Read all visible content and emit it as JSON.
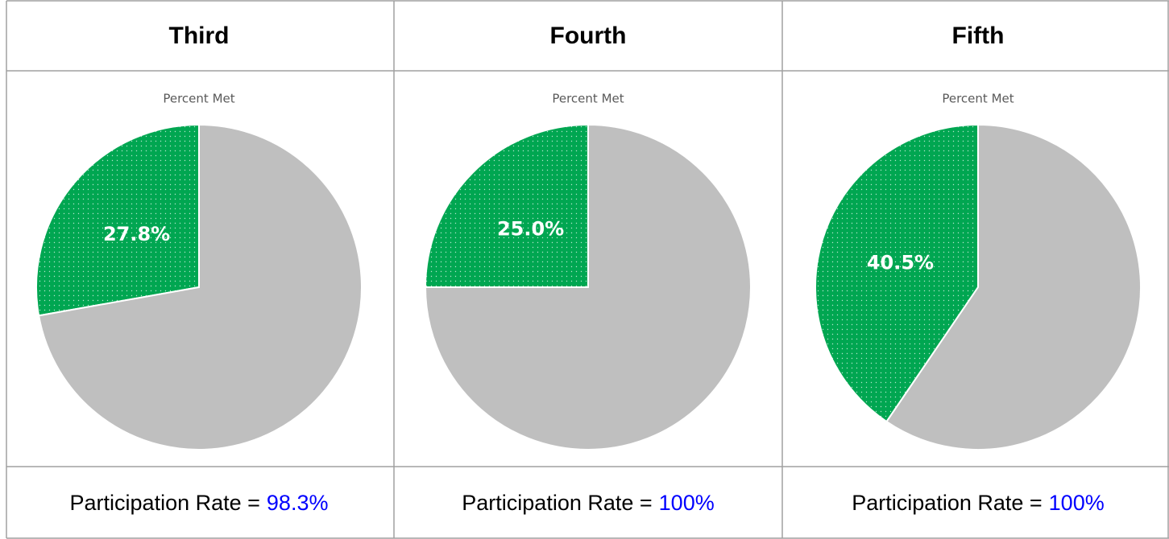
{
  "table": {
    "headers": [
      "Third",
      "Fourth",
      "Fifth"
    ],
    "footer": [
      {
        "label": "Participation Rate =",
        "value": "98.3%"
      },
      {
        "label": "Participation Rate =",
        "value": "100%"
      },
      {
        "label": "Participation Rate =",
        "value": "100%"
      }
    ]
  },
  "chart_data": [
    {
      "type": "pie",
      "title": "Percent Met",
      "values": [
        27.8,
        72.2
      ],
      "value_labels": [
        "27.8%",
        null
      ],
      "colors": [
        "#00a651",
        "#bfbfbf"
      ]
    },
    {
      "type": "pie",
      "title": "Percent Met",
      "values": [
        25.0,
        75.0
      ],
      "value_labels": [
        "25.0%",
        null
      ],
      "colors": [
        "#00a651",
        "#bfbfbf"
      ]
    },
    {
      "type": "pie",
      "title": "Percent Met",
      "values": [
        40.5,
        59.5
      ],
      "value_labels": [
        "40.5%",
        null
      ],
      "colors": [
        "#00a651",
        "#bfbfbf"
      ]
    }
  ]
}
